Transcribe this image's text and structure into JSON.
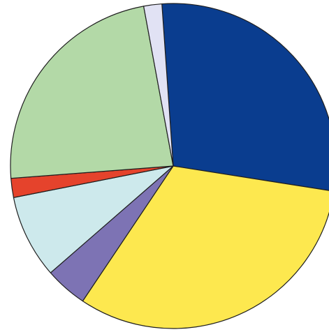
{
  "chart_data": {
    "type": "pie",
    "title": "",
    "legend": "none",
    "start_angle_deg": -94,
    "direction": "clockwise",
    "slices": [
      {
        "label": "",
        "value": 28.6,
        "color": "#0a3d8f"
      },
      {
        "label": "",
        "value": 31.9,
        "color": "#fde84f"
      },
      {
        "label": "",
        "value": 4.2,
        "color": "#7d73b4"
      },
      {
        "label": "",
        "value": 8.3,
        "color": "#cde9ec"
      },
      {
        "label": "",
        "value": 1.9,
        "color": "#e5432c"
      },
      {
        "label": "",
        "value": 23.3,
        "color": "#b3d9a7"
      },
      {
        "label": "",
        "value": 1.8,
        "color": "#e1e2f4"
      }
    ]
  }
}
